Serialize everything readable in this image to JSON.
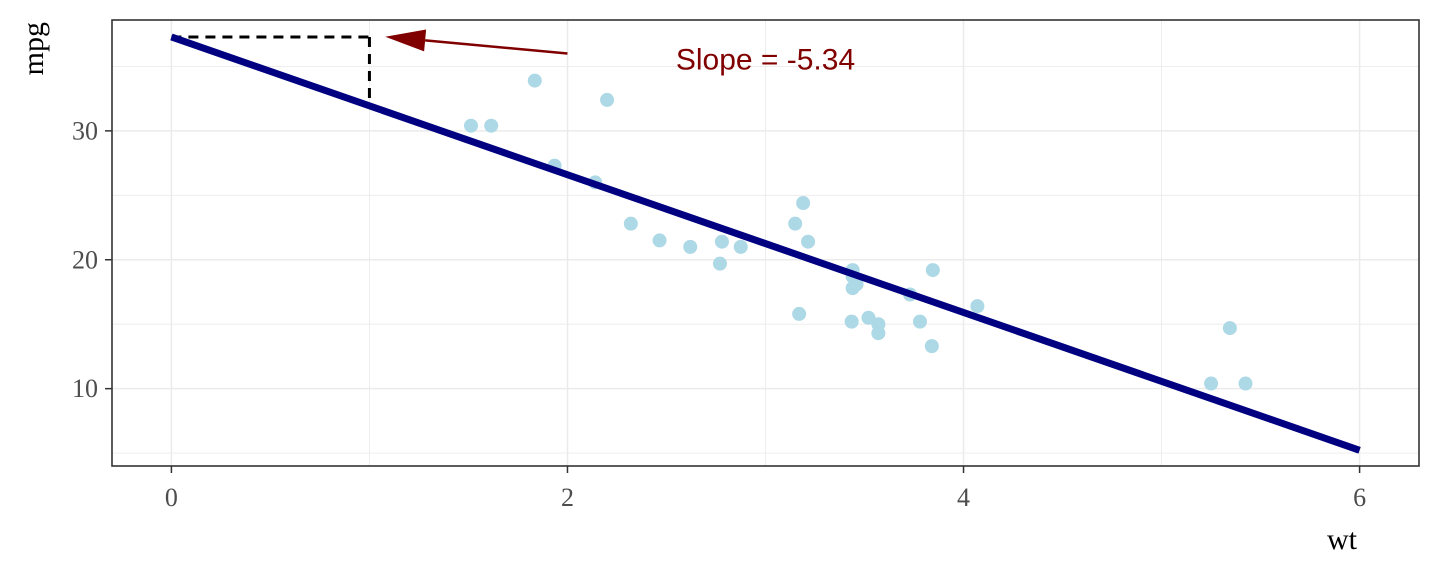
{
  "chart_data": {
    "type": "scatter",
    "xlabel": "wt",
    "ylabel": "mpg",
    "xlim": [
      -0.3,
      6.3
    ],
    "ylim": [
      4.0,
      38.6
    ],
    "x_ticks": [
      0,
      2,
      4,
      6
    ],
    "x_tick_labels": [
      "0",
      "2",
      "4",
      "6"
    ],
    "y_ticks": [
      10,
      20,
      30
    ],
    "y_tick_labels": [
      "10",
      "20",
      "30"
    ],
    "x_minor_ticks": [
      1,
      3,
      5
    ],
    "y_minor_ticks": [
      5,
      15,
      25,
      35
    ],
    "grid": true,
    "legend": "none",
    "points": [
      {
        "x": 2.62,
        "y": 21.0
      },
      {
        "x": 2.875,
        "y": 21.0
      },
      {
        "x": 2.32,
        "y": 22.8
      },
      {
        "x": 3.215,
        "y": 21.4
      },
      {
        "x": 3.44,
        "y": 18.7
      },
      {
        "x": 3.46,
        "y": 18.1
      },
      {
        "x": 3.57,
        "y": 14.3
      },
      {
        "x": 3.19,
        "y": 24.4
      },
      {
        "x": 3.15,
        "y": 22.8
      },
      {
        "x": 3.44,
        "y": 19.2
      },
      {
        "x": 3.44,
        "y": 17.8
      },
      {
        "x": 4.07,
        "y": 16.4
      },
      {
        "x": 3.73,
        "y": 17.3
      },
      {
        "x": 3.78,
        "y": 15.2
      },
      {
        "x": 5.25,
        "y": 10.4
      },
      {
        "x": 5.424,
        "y": 10.4
      },
      {
        "x": 5.345,
        "y": 14.7
      },
      {
        "x": 2.2,
        "y": 32.4
      },
      {
        "x": 1.615,
        "y": 30.4
      },
      {
        "x": 1.835,
        "y": 33.9
      },
      {
        "x": 2.465,
        "y": 21.5
      },
      {
        "x": 3.52,
        "y": 15.5
      },
      {
        "x": 3.435,
        "y": 15.2
      },
      {
        "x": 3.84,
        "y": 13.3
      },
      {
        "x": 3.845,
        "y": 19.2
      },
      {
        "x": 1.935,
        "y": 27.3
      },
      {
        "x": 2.14,
        "y": 26.0
      },
      {
        "x": 1.513,
        "y": 30.4
      },
      {
        "x": 3.17,
        "y": 15.8
      },
      {
        "x": 2.77,
        "y": 19.7
      },
      {
        "x": 3.57,
        "y": 15.0
      },
      {
        "x": 2.78,
        "y": 21.4
      }
    ],
    "regression_line": {
      "intercept": 37.285,
      "slope": -5.344,
      "x_range": [
        0,
        6
      ]
    },
    "slope_guide": {
      "x": [
        0,
        1
      ],
      "y_top": 37.285,
      "y_bottom": 31.941
    },
    "annotation": {
      "text": "Slope = -5.34",
      "x": 3.0,
      "y": 35.5,
      "arrow_from": [
        2.0,
        36.0
      ],
      "arrow_to": [
        1.08,
        37.3
      ]
    },
    "colors": {
      "points": "#add8e6",
      "line": "#000080",
      "annotation": "#800000",
      "guide": "#000000",
      "panel_border": "#333333",
      "grid": "#ebebeb"
    }
  }
}
